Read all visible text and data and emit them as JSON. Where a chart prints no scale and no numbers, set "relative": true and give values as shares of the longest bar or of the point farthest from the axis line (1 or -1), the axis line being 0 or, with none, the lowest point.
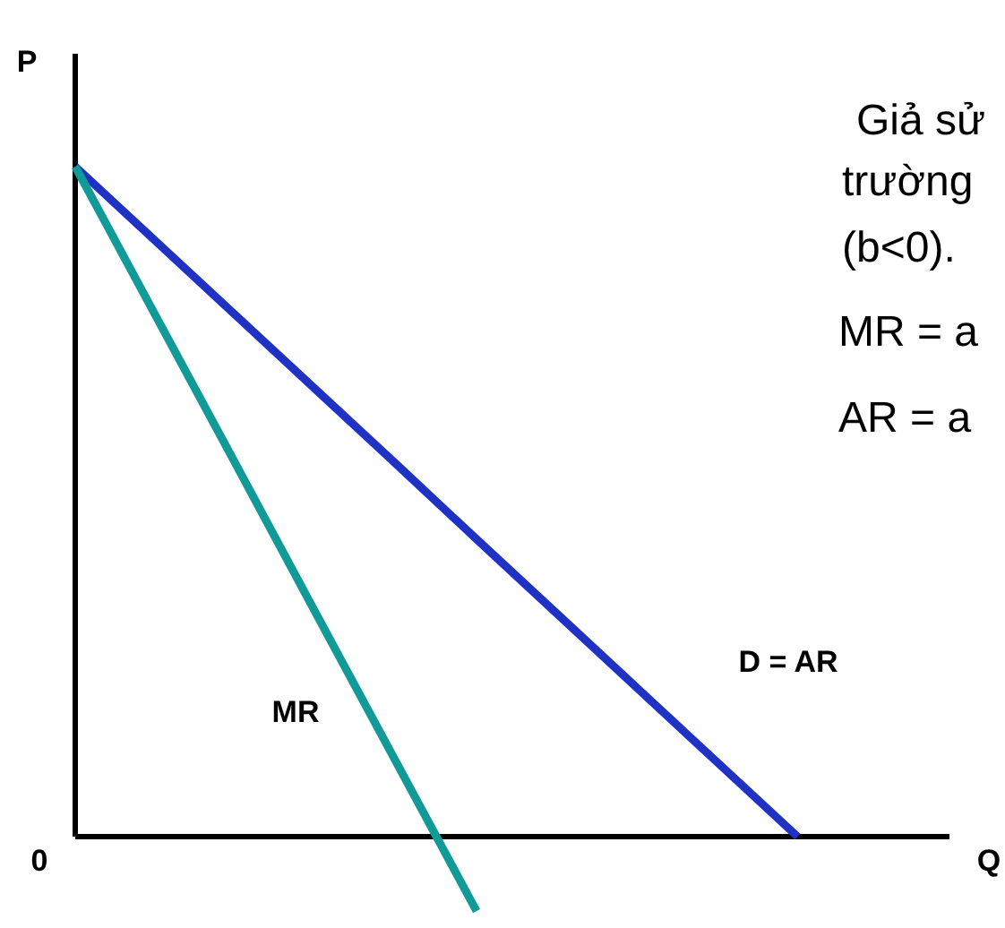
{
  "chart_data": {
    "type": "line",
    "relative": true,
    "xlabel": "Q",
    "ylabel": "P",
    "line_style": "solid",
    "marker": "none",
    "categories": [
      null,
      null,
      null,
      null,
      null,
      null,
      null,
      null,
      null,
      null
    ],
    "series": [
      {
        "name": "D = AR",
        "color": "#1f32c4",
        "values": [
          1,
          0.889,
          0.778,
          0.667,
          0.556,
          0.444,
          0.333,
          0.222,
          0.111,
          0
        ]
      },
      {
        "name": "MR",
        "color": "#119a98",
        "values": [
          1,
          0.778,
          0.556,
          0.333,
          0.111,
          -0.111,
          null,
          null,
          null,
          null
        ]
      }
    ],
    "annotations": [
      "0",
      "Giả sử",
      "trường",
      "(b<0).",
      "MR = a",
      "AR = a"
    ]
  }
}
